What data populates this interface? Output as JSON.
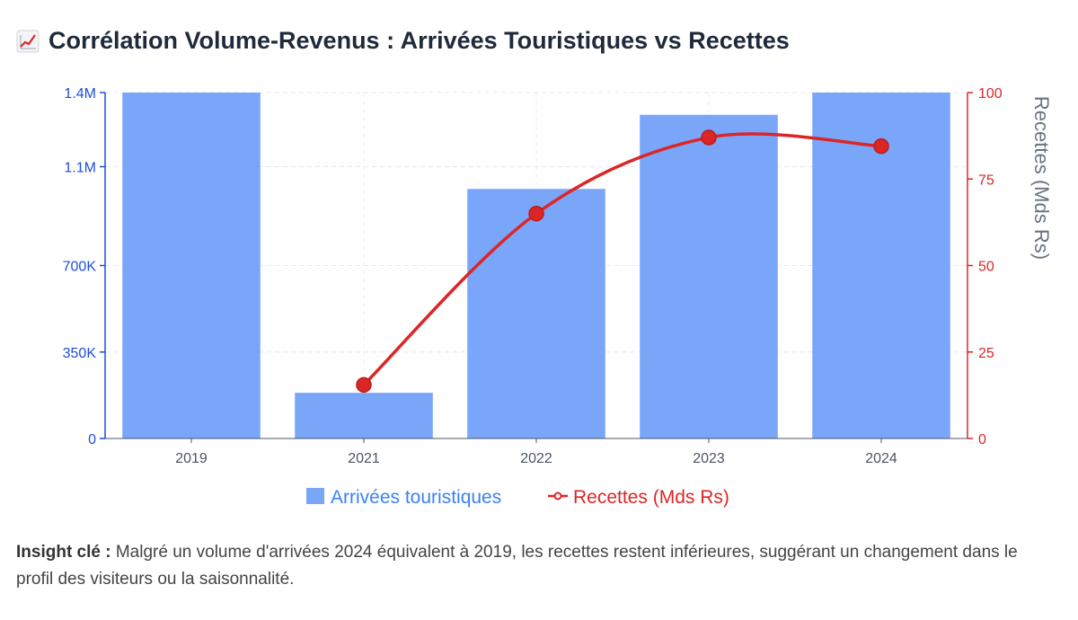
{
  "title": "Corrélation Volume-Revenus : Arrivées Touristiques vs Recettes",
  "title_icon": "chart-increasing-icon",
  "chart_data": {
    "type": "bar",
    "categories": [
      "2019",
      "2021",
      "2022",
      "2023",
      "2024"
    ],
    "series": [
      {
        "name": "Arrivées touristiques",
        "type": "bar",
        "axis": "left",
        "color": "#7aa6fa",
        "values": [
          1400000,
          185000,
          1010000,
          1310000,
          1400000
        ]
      },
      {
        "name": "Recettes (Mds Rs)",
        "type": "line",
        "axis": "right",
        "color": "#dc2626",
        "values": [
          null,
          15.5,
          65,
          87,
          84.5
        ]
      }
    ],
    "y_left": {
      "label": "",
      "ylim": [
        0,
        1400000
      ],
      "ticks": [
        0,
        350000,
        700000,
        1100000,
        1400000
      ],
      "tick_labels": [
        "0",
        "350K",
        "700K",
        "1.1M",
        "1.4M"
      ],
      "color": "#1d4ed8"
    },
    "y_right": {
      "label": "Recettes (Mds Rs)",
      "ylim": [
        0,
        100
      ],
      "ticks": [
        0,
        25,
        50,
        75,
        100
      ],
      "tick_labels": [
        "0",
        "25",
        "50",
        "75",
        "100"
      ],
      "color": "#dc2626"
    },
    "legend_position": "bottom-center",
    "grid": true
  },
  "insight": {
    "label": "Insight clé :",
    "text": " Malgré un volume d'arrivées 2024 équivalent à 2019, les recettes restent inférieures, suggérant un changement dans le profil des visiteurs ou la saisonnalité."
  }
}
